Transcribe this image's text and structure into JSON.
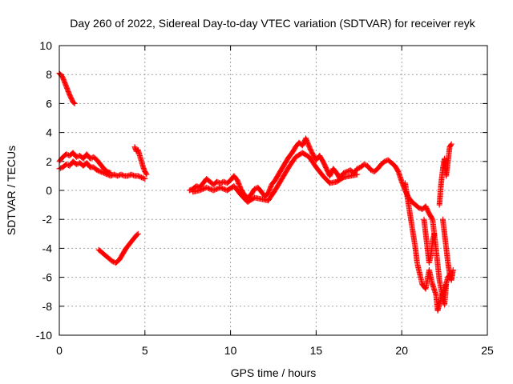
{
  "chart_data": {
    "type": "scatter",
    "title": "Day 260 of 2022, Sidereal Day-to-day VTEC variation (SDTVAR) for receiver reyk",
    "xlabel": "GPS time / hours",
    "ylabel": "SDTVAR / TECUs",
    "xlim": [
      0,
      25
    ],
    "ylim": [
      -10,
      10
    ],
    "xticks": [
      0,
      5,
      10,
      15,
      20,
      25
    ],
    "yticks": [
      -10,
      -8,
      -6,
      -4,
      -2,
      0,
      2,
      4,
      6,
      8,
      10
    ],
    "grid": true,
    "marker": "+",
    "colors": {
      "series": "#ff0000",
      "grid": "#a0a0a0",
      "axes": "#000000"
    },
    "series": [
      {
        "name": "SDTVAR",
        "segments": [
          [
            [
              0.0,
              8.1
            ],
            [
              0.2,
              7.8
            ],
            [
              0.4,
              7.2
            ],
            [
              0.6,
              6.6
            ],
            [
              0.8,
              6.1
            ],
            [
              0.9,
              6.0
            ]
          ],
          [
            [
              0.0,
              2.0
            ],
            [
              0.2,
              2.3
            ],
            [
              0.4,
              2.5
            ],
            [
              0.6,
              2.4
            ],
            [
              0.8,
              2.6
            ],
            [
              1.0,
              2.3
            ],
            [
              1.2,
              2.4
            ],
            [
              1.4,
              2.2
            ],
            [
              1.6,
              2.5
            ],
            [
              1.8,
              2.2
            ],
            [
              2.0,
              2.3
            ],
            [
              2.2,
              2.1
            ],
            [
              2.4,
              1.8
            ],
            [
              2.6,
              1.5
            ],
            [
              2.8,
              1.3
            ],
            [
              3.0,
              1.2
            ]
          ],
          [
            [
              0.0,
              1.5
            ],
            [
              0.2,
              1.6
            ],
            [
              0.4,
              1.8
            ],
            [
              0.6,
              1.7
            ],
            [
              0.8,
              2.0
            ],
            [
              1.0,
              1.8
            ],
            [
              1.2,
              1.9
            ],
            [
              1.4,
              1.7
            ],
            [
              1.6,
              1.9
            ],
            [
              1.8,
              1.6
            ],
            [
              2.0,
              1.6
            ],
            [
              2.2,
              1.4
            ],
            [
              2.4,
              1.3
            ],
            [
              2.6,
              1.2
            ],
            [
              2.8,
              1.1
            ],
            [
              3.0,
              1.0
            ],
            [
              3.2,
              1.1
            ],
            [
              3.4,
              1.0
            ],
            [
              3.6,
              1.1
            ],
            [
              3.8,
              1.0
            ],
            [
              4.0,
              1.0
            ],
            [
              4.2,
              1.1
            ],
            [
              4.4,
              1.0
            ],
            [
              4.6,
              1.0
            ],
            [
              4.8,
              0.9
            ],
            [
              5.0,
              0.8
            ]
          ],
          [
            [
              4.4,
              3.0
            ],
            [
              4.5,
              2.7
            ],
            [
              4.6,
              2.8
            ],
            [
              4.7,
              2.4
            ],
            [
              4.8,
              2.0
            ],
            [
              4.9,
              1.6
            ],
            [
              5.0,
              1.3
            ],
            [
              5.1,
              1.1
            ]
          ],
          [
            [
              2.3,
              -4.1
            ],
            [
              2.5,
              -4.3
            ],
            [
              2.7,
              -4.5
            ],
            [
              2.9,
              -4.7
            ],
            [
              3.1,
              -4.9
            ],
            [
              3.3,
              -5.0
            ],
            [
              3.5,
              -4.8
            ],
            [
              3.7,
              -4.4
            ],
            [
              3.9,
              -4.0
            ],
            [
              4.1,
              -3.7
            ],
            [
              4.3,
              -3.4
            ],
            [
              4.5,
              -3.1
            ],
            [
              4.6,
              -3.0
            ]
          ],
          [
            [
              7.6,
              0.0
            ],
            [
              7.8,
              0.1
            ],
            [
              8.0,
              0.3
            ],
            [
              8.2,
              0.2
            ],
            [
              8.4,
              0.5
            ],
            [
              8.6,
              0.8
            ],
            [
              8.8,
              0.6
            ],
            [
              9.0,
              0.4
            ],
            [
              9.2,
              0.6
            ],
            [
              9.4,
              0.5
            ],
            [
              9.6,
              0.6
            ],
            [
              9.8,
              0.5
            ],
            [
              10.0,
              0.7
            ],
            [
              10.2,
              1.0
            ],
            [
              10.4,
              0.7
            ],
            [
              10.6,
              0.1
            ],
            [
              10.8,
              -0.3
            ],
            [
              11.0,
              -0.5
            ],
            [
              11.2,
              -0.3
            ],
            [
              11.4,
              0.1
            ],
            [
              11.6,
              0.2
            ],
            [
              11.8,
              -0.1
            ],
            [
              12.0,
              -0.4
            ],
            [
              12.2,
              -0.2
            ],
            [
              12.4,
              0.4
            ],
            [
              12.6,
              0.7
            ],
            [
              12.8,
              1.1
            ],
            [
              13.0,
              1.5
            ],
            [
              13.2,
              1.9
            ],
            [
              13.4,
              2.3
            ],
            [
              13.6,
              2.6
            ],
            [
              13.8,
              3.0
            ],
            [
              14.0,
              3.3
            ],
            [
              14.2,
              3.1
            ],
            [
              14.4,
              3.6
            ],
            [
              14.6,
              3.0
            ],
            [
              14.8,
              2.5
            ],
            [
              15.0,
              2.1
            ],
            [
              15.2,
              2.4
            ],
            [
              15.4,
              2.0
            ],
            [
              15.6,
              1.5
            ],
            [
              15.8,
              1.0
            ],
            [
              16.0,
              1.5
            ],
            [
              16.2,
              1.2
            ],
            [
              16.4,
              0.8
            ],
            [
              16.6,
              1.2
            ],
            [
              16.8,
              1.3
            ],
            [
              17.0,
              1.4
            ],
            [
              17.2,
              1.2
            ],
            [
              17.4,
              1.5
            ],
            [
              17.6,
              1.6
            ],
            [
              17.8,
              1.8
            ],
            [
              18.0,
              1.7
            ],
            [
              18.2,
              1.4
            ],
            [
              18.4,
              1.3
            ],
            [
              18.6,
              1.5
            ],
            [
              18.8,
              1.8
            ],
            [
              19.0,
              2.0
            ],
            [
              19.2,
              2.1
            ],
            [
              19.4,
              1.9
            ],
            [
              19.6,
              1.7
            ],
            [
              19.8,
              1.3
            ],
            [
              20.0,
              0.6
            ],
            [
              20.2,
              0.0
            ],
            [
              20.4,
              -0.5
            ],
            [
              20.6,
              -0.8
            ],
            [
              20.8,
              -1.0
            ],
            [
              21.0,
              -1.2
            ],
            [
              21.2,
              -1.3
            ],
            [
              21.4,
              -1.1
            ],
            [
              21.6,
              -1.6
            ],
            [
              21.8,
              -2.0
            ],
            [
              22.0,
              -4.0
            ],
            [
              22.2,
              -6.2
            ],
            [
              22.4,
              -7.5
            ],
            [
              22.5,
              -7.9
            ],
            [
              22.6,
              -6.5
            ]
          ],
          [
            [
              7.8,
              -0.1
            ],
            [
              8.2,
              0.0
            ],
            [
              8.6,
              0.2
            ],
            [
              9.0,
              0.0
            ],
            [
              9.4,
              0.2
            ],
            [
              9.8,
              0.0
            ],
            [
              10.2,
              0.3
            ],
            [
              10.6,
              -0.3
            ],
            [
              11.0,
              -0.8
            ],
            [
              11.4,
              -0.5
            ],
            [
              11.8,
              -0.6
            ],
            [
              12.2,
              -0.7
            ],
            [
              12.6,
              0.0
            ],
            [
              13.0,
              0.8
            ],
            [
              13.4,
              1.6
            ],
            [
              13.8,
              2.3
            ],
            [
              14.2,
              2.6
            ],
            [
              14.6,
              2.3
            ],
            [
              15.0,
              1.6
            ],
            [
              15.4,
              1.0
            ],
            [
              15.8,
              0.5
            ],
            [
              16.2,
              0.6
            ],
            [
              16.6,
              0.9
            ],
            [
              17.0,
              1.0
            ],
            [
              17.4,
              1.1
            ]
          ],
          [
            [
              20.2,
              0.5
            ],
            [
              20.4,
              -1.0
            ],
            [
              20.6,
              -2.5
            ],
            [
              20.8,
              -4.0
            ],
            [
              20.9,
              -5.0
            ],
            [
              21.0,
              -5.5
            ],
            [
              21.2,
              -6.5
            ],
            [
              21.4,
              -6.8
            ],
            [
              21.6,
              -5.5
            ],
            [
              21.8,
              -6.5
            ],
            [
              22.0,
              -7.2
            ],
            [
              22.1,
              -8.3
            ],
            [
              22.3,
              -7.5
            ],
            [
              22.5,
              -6.8
            ],
            [
              22.7,
              -6.0
            ],
            [
              22.8,
              -5.8
            ]
          ],
          [
            [
              21.3,
              -2.0
            ],
            [
              21.4,
              -3.0
            ],
            [
              21.5,
              -4.0
            ],
            [
              21.6,
              -5.0
            ],
            [
              21.7,
              -4.5
            ],
            [
              21.8,
              -3.5
            ],
            [
              21.9,
              -3.0
            ]
          ],
          [
            [
              22.2,
              -1.0
            ],
            [
              22.3,
              0.5
            ],
            [
              22.4,
              1.5
            ],
            [
              22.5,
              2.2
            ],
            [
              22.6,
              1.0
            ],
            [
              22.7,
              2.0
            ],
            [
              22.8,
              3.0
            ],
            [
              22.9,
              3.2
            ]
          ],
          [
            [
              22.4,
              -2.0
            ],
            [
              22.5,
              -3.0
            ],
            [
              22.6,
              -4.0
            ],
            [
              22.7,
              -5.0
            ],
            [
              22.8,
              -5.8
            ],
            [
              22.9,
              -6.2
            ],
            [
              23.0,
              -5.5
            ]
          ]
        ]
      }
    ]
  }
}
